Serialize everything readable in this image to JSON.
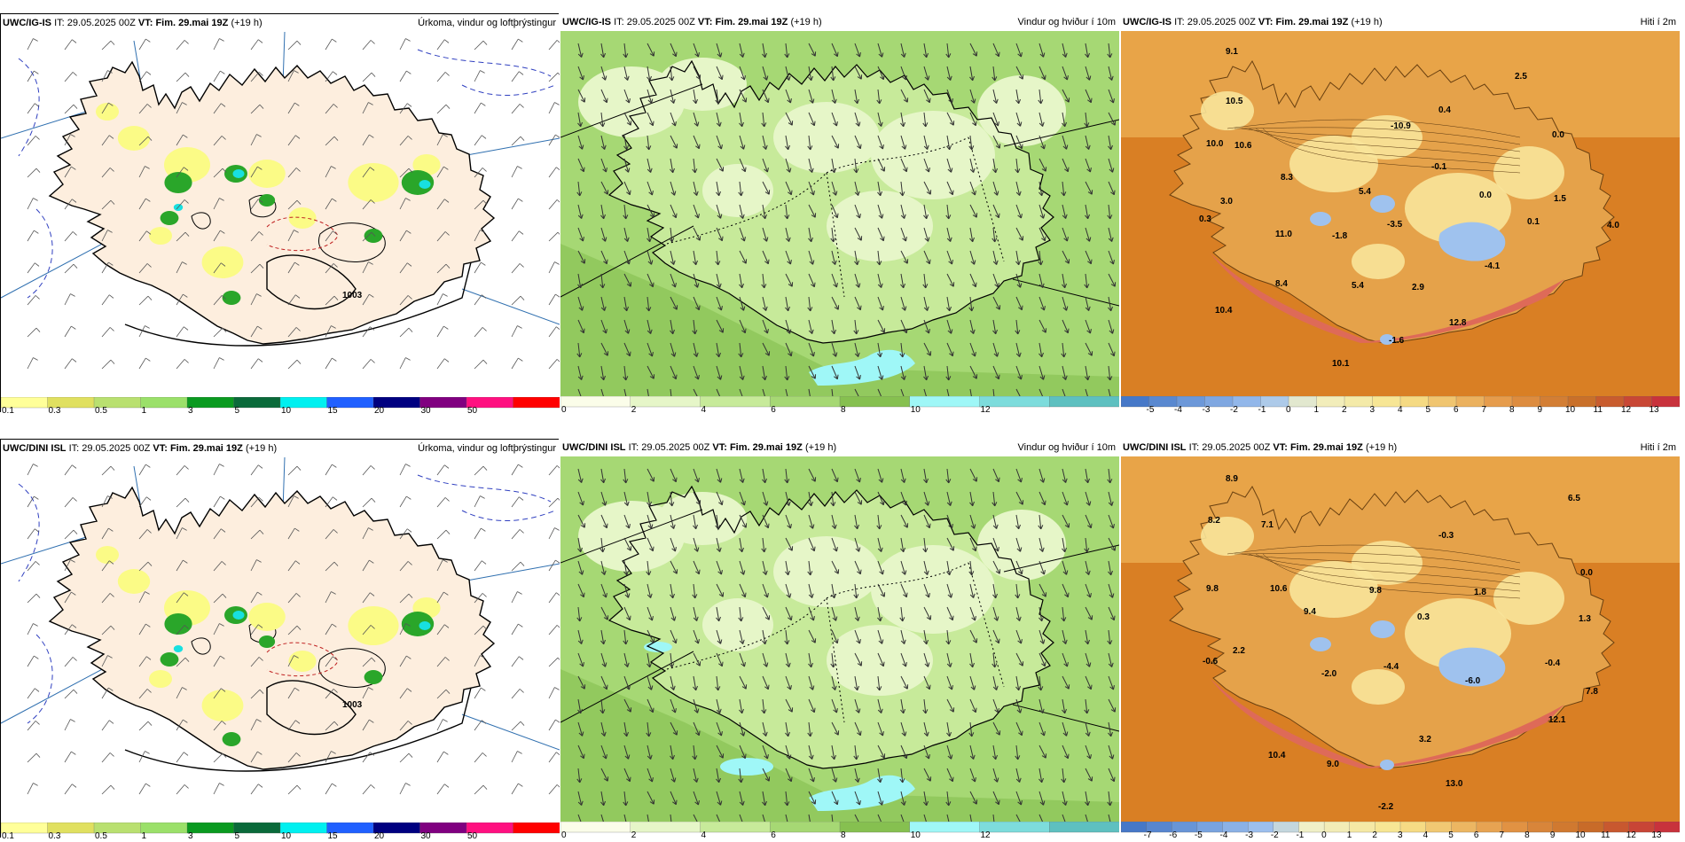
{
  "rows": [
    {
      "model": "UWC/IG-IS",
      "it_label": "IT:",
      "it": "29.05.2025 00Z",
      "vt_label": "VT:",
      "vt": "Fim. 29.mai 19Z",
      "lead": "(+19 h)",
      "panels": {
        "precip": {
          "title": "Úrkoma, vindur og loftþrýstingur",
          "pressure_label": "1003",
          "colorbar": {
            "ticks": [
              "0.1",
              "0.3",
              "0.5",
              "1",
              "3",
              "5",
              "10",
              "15",
              "20",
              "30",
              "50"
            ],
            "colors": [
              "#ffff99",
              "#e0e060",
              "#b9e070",
              "#9be06a",
              "#0a9a20",
              "#0a6a3a",
              "#00f0f0",
              "#2060ff",
              "#000080",
              "#800080",
              "#ff1080",
              "#ff0000"
            ]
          }
        },
        "wind": {
          "title": "Vindur og hviður í 10m",
          "colorbar": {
            "ticks": [
              "0",
              "2",
              "4",
              "6",
              "8",
              "10",
              "12"
            ],
            "colors": [
              "#fbfde9",
              "#e6f6c8",
              "#c7ea9a",
              "#a6d874",
              "#86c050",
              "#9ff7f7",
              "#7ddcdc",
              "#5ec0c0"
            ]
          }
        },
        "temp": {
          "title": "Hiti í 2m",
          "values": [
            {
              "v": "9.1"
            },
            {
              "v": "10.5"
            },
            {
              "v": "10.0"
            },
            {
              "v": "10.6"
            },
            {
              "v": "8.3"
            },
            {
              "v": "3.0"
            },
            {
              "v": "0.3"
            },
            {
              "v": "11.0"
            },
            {
              "v": "-1.8"
            },
            {
              "v": "-3.5"
            },
            {
              "v": "5.4"
            },
            {
              "v": "-10.9"
            },
            {
              "v": "0.4"
            },
            {
              "v": "2.5"
            },
            {
              "v": "0.0"
            },
            {
              "v": "-0.1"
            },
            {
              "v": "0.0"
            },
            {
              "v": "1.5"
            },
            {
              "v": "0.1"
            },
            {
              "v": "4.0"
            },
            {
              "v": "8.4"
            },
            {
              "v": "5.4"
            },
            {
              "v": "2.9"
            },
            {
              "v": "-4.1"
            },
            {
              "v": "10.4"
            },
            {
              "v": "12.8"
            },
            {
              "v": "-1.6"
            },
            {
              "v": "10.1"
            }
          ],
          "colorbar": {
            "ticks": [
              "-5",
              "-4",
              "-3",
              "-2",
              "-1",
              "0",
              "1",
              "2",
              "3",
              "4",
              "5",
              "6",
              "7",
              "8",
              "9",
              "10",
              "11",
              "12",
              "13"
            ]
          }
        }
      }
    },
    {
      "model": "UWC/DINI ISL",
      "it_label": "IT:",
      "it": "29.05.2025 00Z",
      "vt_label": "VT:",
      "vt": "Fim. 29.mai 19Z",
      "lead": "(+19 h)",
      "panels": {
        "precip": {
          "title": "Úrkoma, vindur og loftþrýstingur",
          "pressure_label": "1003",
          "colorbar": {
            "ticks": [
              "0.1",
              "0.3",
              "0.5",
              "1",
              "3",
              "5",
              "10",
              "15",
              "20",
              "30",
              "50"
            ],
            "colors": [
              "#ffff99",
              "#e0e060",
              "#b9e070",
              "#9be06a",
              "#0a9a20",
              "#0a6a3a",
              "#00f0f0",
              "#2060ff",
              "#000080",
              "#800080",
              "#ff1080",
              "#ff0000"
            ]
          }
        },
        "wind": {
          "title": "Vindur og hviður í 10m",
          "colorbar": {
            "ticks": [
              "0",
              "2",
              "4",
              "6",
              "8",
              "10",
              "12"
            ],
            "colors": [
              "#fbfde9",
              "#e6f6c8",
              "#c7ea9a",
              "#a6d874",
              "#86c050",
              "#9ff7f7",
              "#7ddcdc",
              "#5ec0c0"
            ]
          }
        },
        "temp": {
          "title": "Hiti í 2m",
          "values": [
            {
              "v": "8.9"
            },
            {
              "v": "8.2"
            },
            {
              "v": "7.1"
            },
            {
              "v": "6.5"
            },
            {
              "v": "-0.3"
            },
            {
              "v": "9.8"
            },
            {
              "v": "10.6"
            },
            {
              "v": "9.4"
            },
            {
              "v": "9.8"
            },
            {
              "v": "1.8"
            },
            {
              "v": "0.0"
            },
            {
              "v": "2.2"
            },
            {
              "v": "0.3"
            },
            {
              "v": "1.3"
            },
            {
              "v": "-0.6"
            },
            {
              "v": "-2.0"
            },
            {
              "v": "-4.4"
            },
            {
              "v": "-6.0"
            },
            {
              "v": "-0.4"
            },
            {
              "v": "7.8"
            },
            {
              "v": "12.1"
            },
            {
              "v": "3.2"
            },
            {
              "v": "10.4"
            },
            {
              "v": "9.0"
            },
            {
              "v": "13.0"
            },
            {
              "v": "-2.2"
            }
          ],
          "colorbar": {
            "ticks": [
              "-7",
              "-6",
              "-5",
              "-4",
              "-3",
              "-2",
              "-1",
              "0",
              "1",
              "2",
              "3",
              "4",
              "5",
              "6",
              "7",
              "8",
              "9",
              "10",
              "11",
              "12",
              "13"
            ]
          }
        }
      }
    }
  ],
  "colors": {
    "land_precip": "#fdeede",
    "sea": "#ffffff",
    "temp_bg": "#d97f24",
    "temp_mid": "#e5a24a",
    "temp_light": "#f8e49a",
    "temp_cold": "#9fc2ee",
    "temp_warm": "#de6a58"
  }
}
